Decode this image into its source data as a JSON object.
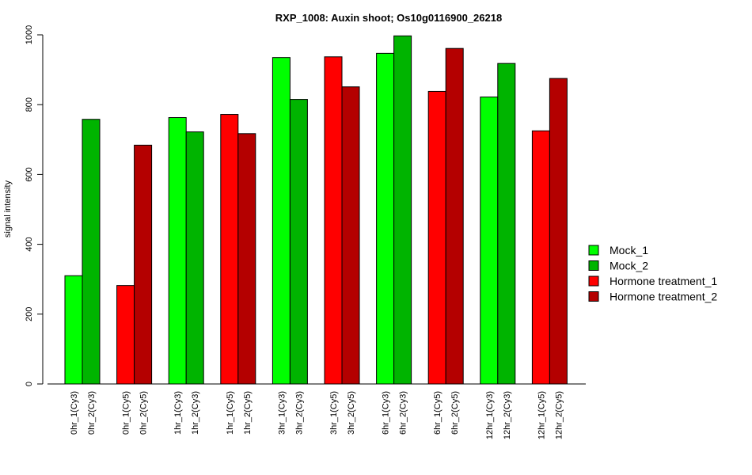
{
  "chart_data": {
    "type": "bar",
    "title": "RXP_1008: Auxin shoot; Os10g0116900_26218",
    "xlabel": "",
    "ylabel": "signal intensity",
    "ylim": [
      0,
      1000
    ],
    "yticks": [
      0,
      200,
      400,
      600,
      800,
      1000
    ],
    "grid": false,
    "legend_position": "right",
    "series": [
      {
        "name": "Mock_1",
        "color": "#00ff00"
      },
      {
        "name": "Mock_2",
        "color": "#00b400"
      },
      {
        "name": "Hormone treatment_1",
        "color": "#ff0000"
      },
      {
        "name": "Hormone treatment_2",
        "color": "#b40000"
      }
    ],
    "groups": [
      {
        "bars": [
          {
            "label": "0hr_1(Cy3)",
            "value": 310,
            "series": 0
          },
          {
            "label": "0hr_2(Cy3)",
            "value": 758,
            "series": 1
          }
        ]
      },
      {
        "bars": [
          {
            "label": "0hr_1(Cy5)",
            "value": 282,
            "series": 2
          },
          {
            "label": "0hr_2(Cy5)",
            "value": 684,
            "series": 3
          }
        ]
      },
      {
        "bars": [
          {
            "label": "1hr_1(Cy3)",
            "value": 763,
            "series": 0
          },
          {
            "label": "1hr_2(Cy3)",
            "value": 722,
            "series": 1
          }
        ]
      },
      {
        "bars": [
          {
            "label": "1hr_1(Cy5)",
            "value": 772,
            "series": 2
          },
          {
            "label": "1hr_2(Cy5)",
            "value": 717,
            "series": 3
          }
        ]
      },
      {
        "bars": [
          {
            "label": "3hr_1(Cy3)",
            "value": 935,
            "series": 0
          },
          {
            "label": "3hr_2(Cy3)",
            "value": 815,
            "series": 1
          }
        ]
      },
      {
        "bars": [
          {
            "label": "3hr_1(Cy5)",
            "value": 937,
            "series": 2
          },
          {
            "label": "3hr_2(Cy5)",
            "value": 851,
            "series": 3
          }
        ]
      },
      {
        "bars": [
          {
            "label": "6hr_1(Cy3)",
            "value": 947,
            "series": 0
          },
          {
            "label": "6hr_2(Cy3)",
            "value": 997,
            "series": 1
          }
        ]
      },
      {
        "bars": [
          {
            "label": "6hr_1(Cy5)",
            "value": 838,
            "series": 2
          },
          {
            "label": "6hr_2(Cy5)",
            "value": 961,
            "series": 3
          }
        ]
      },
      {
        "bars": [
          {
            "label": "12hr_1(Cy3)",
            "value": 822,
            "series": 0
          },
          {
            "label": "12hr_2(Cy3)",
            "value": 918,
            "series": 1
          }
        ]
      },
      {
        "bars": [
          {
            "label": "12hr_1(Cy5)",
            "value": 725,
            "series": 2
          },
          {
            "label": "12hr_2(Cy5)",
            "value": 875,
            "series": 3
          }
        ]
      }
    ]
  }
}
